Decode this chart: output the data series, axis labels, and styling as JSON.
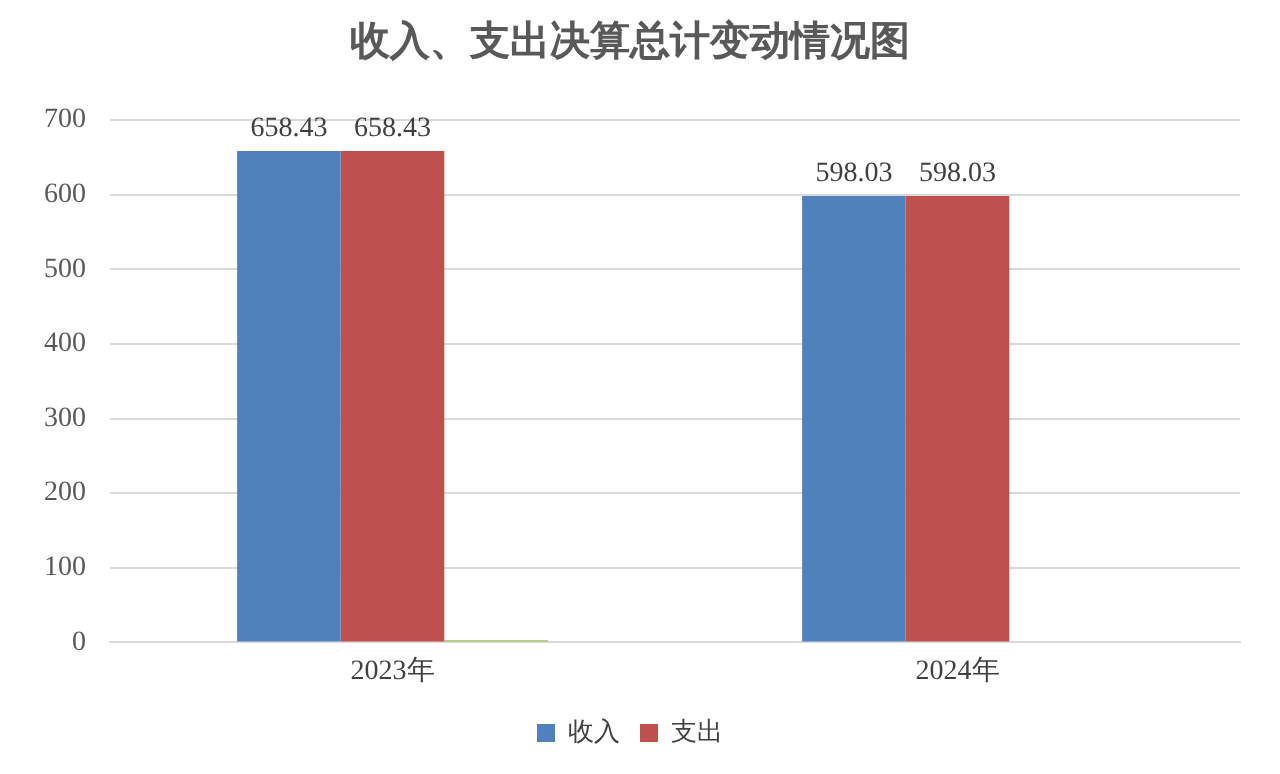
{
  "chart_data": {
    "type": "bar",
    "title": "收入、支出决算总计变动情况图",
    "categories": [
      "2023年",
      "2024年"
    ],
    "series": [
      {
        "name": "收入",
        "color": "#4f81bd",
        "values": [
          658.43,
          598.03
        ],
        "value_labels": [
          "658.43",
          "598.03"
        ]
      },
      {
        "name": "支出",
        "color": "#c0504d",
        "values": [
          658.43,
          598.03
        ],
        "value_labels": [
          "658.43",
          "598.03"
        ]
      },
      {
        "color": "#9bbb59",
        "values": [
          3,
          null
        ]
      }
    ],
    "ylim": [
      0,
      700
    ],
    "yticks": [
      0,
      100,
      200,
      300,
      400,
      500,
      600,
      700
    ],
    "grid": "y",
    "legend": "bottom"
  }
}
